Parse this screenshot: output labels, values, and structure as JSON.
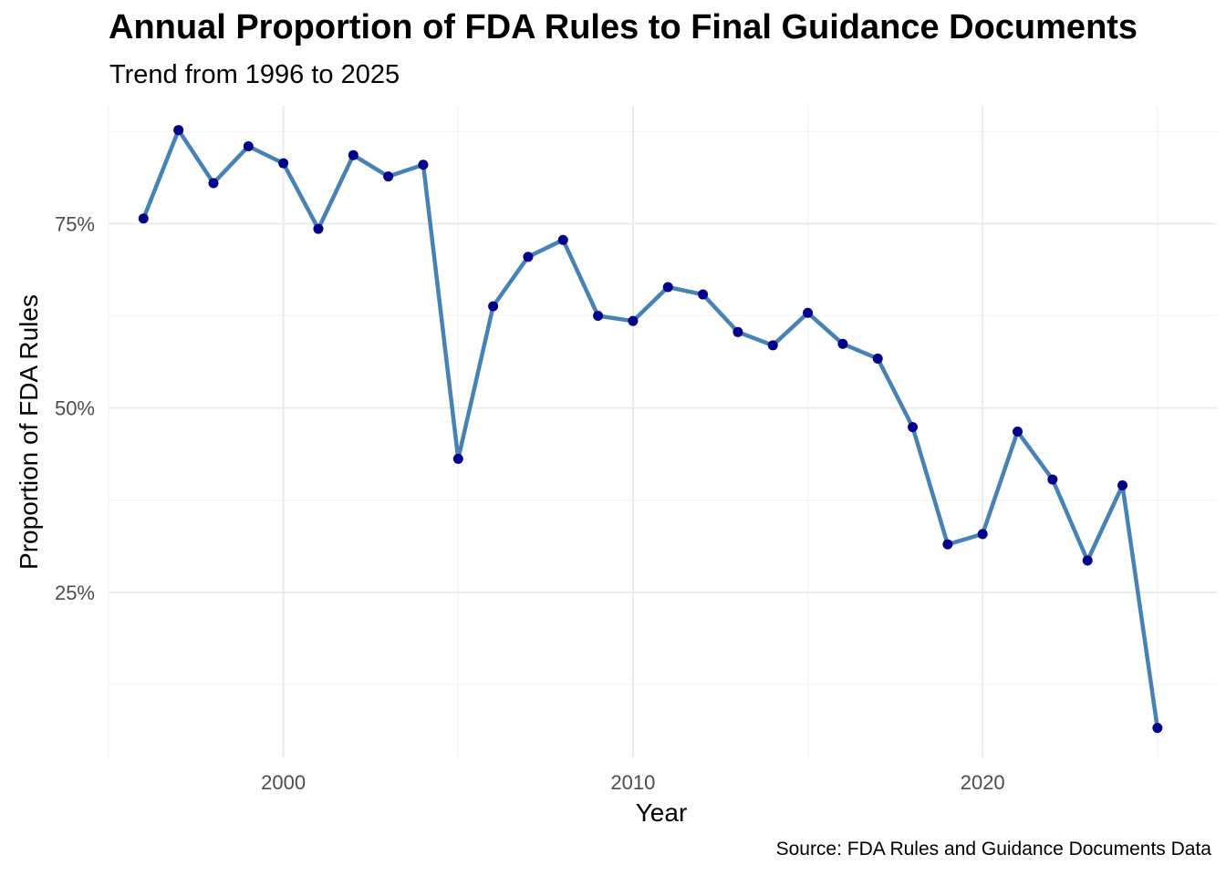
{
  "chart_data": {
    "type": "line",
    "title": "Annual Proportion of FDA Rules to Final Guidance Documents",
    "subtitle": "Trend from 1996 to 2025",
    "caption": "Source: FDA Rules and Guidance Documents Data",
    "xlabel": "Year",
    "ylabel": "Proportion of FDA Rules",
    "x": [
      1996,
      1997,
      1998,
      1999,
      2000,
      2001,
      2002,
      2003,
      2004,
      2005,
      2006,
      2007,
      2008,
      2009,
      2010,
      2011,
      2012,
      2013,
      2014,
      2015,
      2016,
      2017,
      2018,
      2019,
      2020,
      2021,
      2022,
      2023,
      2024,
      2025
    ],
    "series": [
      {
        "values": [
          0.757,
          0.877,
          0.805,
          0.855,
          0.832,
          0.743,
          0.843,
          0.814,
          0.83,
          0.431,
          0.638,
          0.705,
          0.728,
          0.625,
          0.618,
          0.664,
          0.654,
          0.603,
          0.585,
          0.629,
          0.587,
          0.567,
          0.474,
          0.315,
          0.329,
          0.468,
          0.403,
          0.293,
          0.395,
          0.066
        ],
        "line_color": "#4682b4",
        "point_color": "#00008b"
      }
    ],
    "xlim": [
      1995,
      2026.7
    ],
    "ylim": [
      0.026,
      0.91
    ],
    "x_ticks": [
      2000,
      2010,
      2020
    ],
    "x_tick_labels": [
      "2000",
      "2010",
      "2020"
    ],
    "y_ticks": [
      0.25,
      0.5,
      0.75
    ],
    "y_tick_labels": [
      "25%",
      "50%",
      "75%"
    ],
    "x_minor_ticks": [
      1995,
      2005,
      2015,
      2025
    ],
    "y_minor_ticks": [
      0.125,
      0.375,
      0.625,
      0.875
    ],
    "grid": true,
    "legend": "none"
  }
}
